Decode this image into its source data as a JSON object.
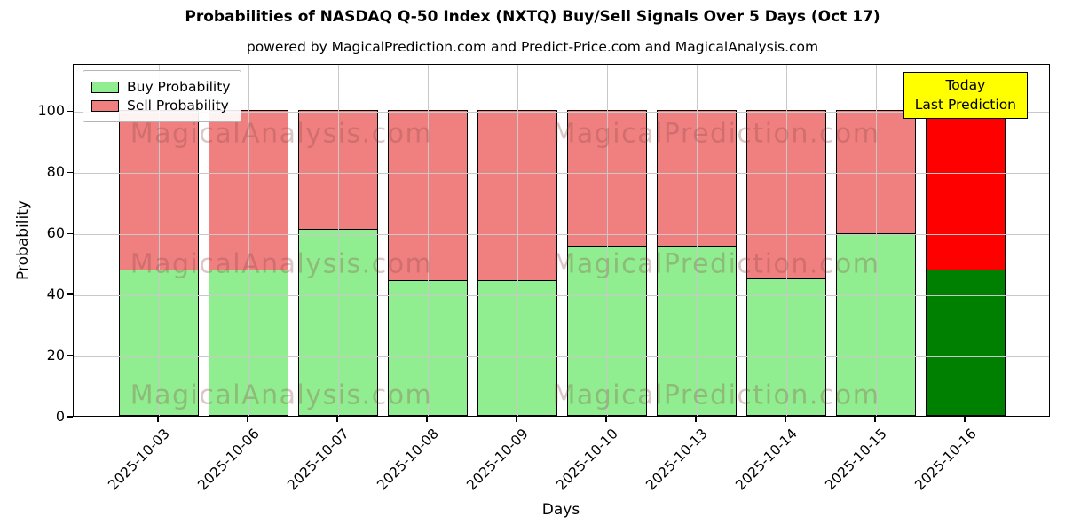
{
  "chart_data": {
    "type": "bar",
    "stacked": true,
    "title": "Probabilities of NASDAQ Q-50 Index (NXTQ) Buy/Sell Signals Over 5 Days (Oct 17)",
    "subtitle": "powered by MagicalPrediction.com and Predict-Price.com and MagicalAnalysis.com",
    "xlabel": "Days",
    "ylabel": "Probability",
    "categories": [
      "2025-10-03",
      "2025-10-06",
      "2025-10-07",
      "2025-10-08",
      "2025-10-09",
      "2025-10-10",
      "2025-10-13",
      "2025-10-14",
      "2025-10-15",
      "2025-10-16"
    ],
    "series": [
      {
        "name": "Buy Probability",
        "color": "#90ee90",
        "last_bar_color": "#008000",
        "values": [
          48,
          48,
          61.5,
          44.5,
          44.5,
          55.5,
          55.5,
          45,
          60,
          48
        ]
      },
      {
        "name": "Sell Probability",
        "color": "#f08080",
        "last_bar_color": "#ff0000",
        "values": [
          52,
          52,
          38.5,
          55.5,
          55.5,
          44.5,
          44.5,
          55,
          40,
          52
        ]
      }
    ],
    "ylim": [
      0,
      115.5
    ],
    "yticks": [
      0,
      20,
      40,
      60,
      80,
      100
    ],
    "dashed_line_y": 110,
    "grid": true,
    "legend_position": "upper-left"
  },
  "annotation": {
    "line1": "Today",
    "line2": "Last Prediction",
    "bg_color": "#ffff00"
  },
  "watermarks": {
    "left": "MagicalAnalysis.com",
    "right": "MagicalPrediction.com"
  }
}
